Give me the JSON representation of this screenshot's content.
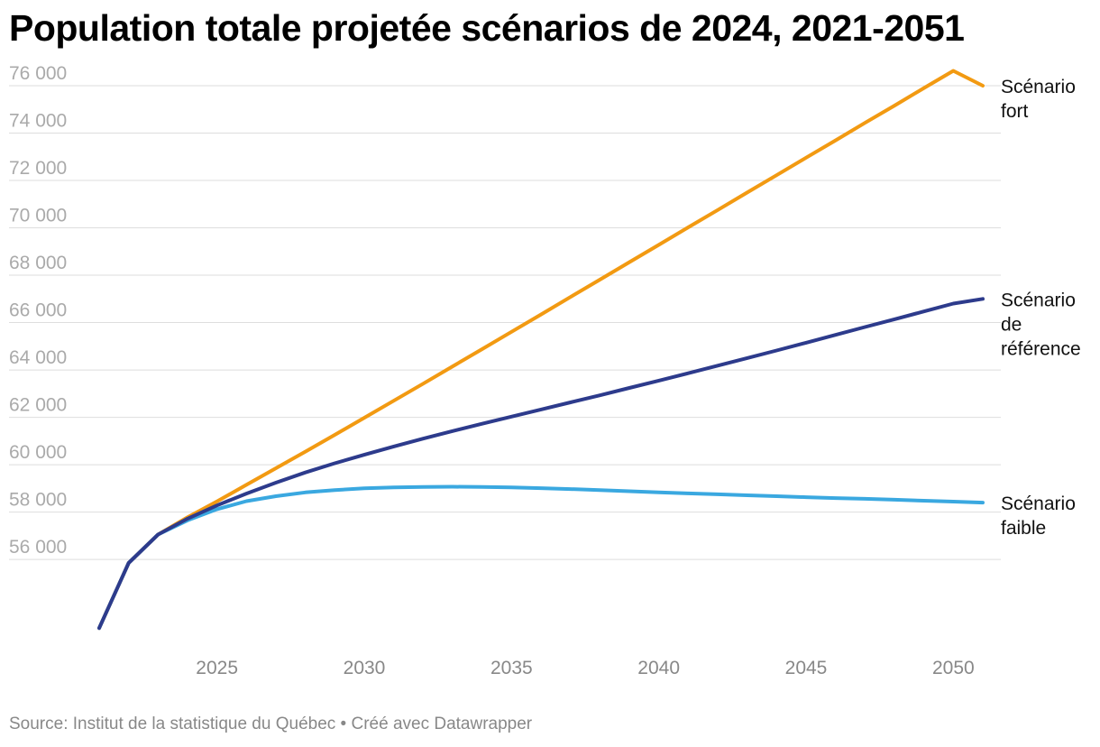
{
  "title": "Population totale projetée scénarios de 2024, 2021-2051",
  "source": "Source: Institut de la statistique du Québec • Créé avec Datawrapper",
  "chart_data": {
    "type": "line",
    "title": "Population totale projetée scénarios de 2024, 2021-2051",
    "xlabel": "",
    "ylabel": "",
    "xlim": [
      2021,
      2051
    ],
    "ylim": [
      52500,
      76000
    ],
    "x_ticks": [
      2025,
      2030,
      2035,
      2040,
      2045,
      2050
    ],
    "x_tick_labels": [
      "2025",
      "2030",
      "2035",
      "2040",
      "2045",
      "2050"
    ],
    "y_ticks": [
      56000,
      58000,
      60000,
      62000,
      64000,
      66000,
      68000,
      70000,
      72000,
      74000,
      76000
    ],
    "y_tick_labels": [
      "56 000",
      "58 000",
      "60 000",
      "62 000",
      "64 000",
      "66 000",
      "68 000",
      "70 000",
      "72 000",
      "74 000",
      "76 000"
    ],
    "grid": "horizontal",
    "legend": "direct labels at line ends (right)",
    "series": [
      {
        "name": "Scénario fort",
        "label_lines": [
          "Scénario",
          "fort"
        ],
        "color": "#f29a12",
        "x": [
          2021,
          2022,
          2023,
          2024,
          2025,
          2026,
          2027,
          2028,
          2029,
          2030,
          2031,
          2032,
          2033,
          2034,
          2035,
          2036,
          2037,
          2038,
          2039,
          2040,
          2041,
          2042,
          2043,
          2044,
          2045,
          2046,
          2047,
          2048,
          2049,
          2050,
          2051
        ],
        "values": [
          53100,
          55850,
          57050,
          57780,
          58450,
          59150,
          59850,
          60550,
          61260,
          61980,
          62700,
          63420,
          64150,
          64880,
          65610,
          66340,
          67080,
          67810,
          68550,
          69280,
          70020,
          70750,
          71490,
          72220,
          72960,
          73690,
          74430,
          75160,
          75900,
          76630,
          76000
        ]
      },
      {
        "name": "Scénario de référence",
        "label_lines": [
          "Scénario",
          "de",
          "référence"
        ],
        "color": "#2d3b8c",
        "x": [
          2021,
          2022,
          2023,
          2024,
          2025,
          2026,
          2027,
          2028,
          2029,
          2030,
          2031,
          2032,
          2033,
          2034,
          2035,
          2036,
          2037,
          2038,
          2039,
          2040,
          2041,
          2042,
          2043,
          2044,
          2045,
          2046,
          2047,
          2048,
          2049,
          2050,
          2051
        ],
        "values": [
          53100,
          55850,
          57050,
          57720,
          58280,
          58780,
          59240,
          59670,
          60060,
          60420,
          60770,
          61100,
          61420,
          61730,
          62030,
          62330,
          62630,
          62930,
          63240,
          63550,
          63860,
          64180,
          64500,
          64820,
          65150,
          65480,
          65810,
          66140,
          66470,
          66800,
          67000
        ]
      },
      {
        "name": "Scénario faible",
        "label_lines": [
          "Scénario",
          "faible"
        ],
        "color": "#3aa8e0",
        "x": [
          2021,
          2022,
          2023,
          2024,
          2025,
          2026,
          2027,
          2028,
          2029,
          2030,
          2031,
          2032,
          2033,
          2034,
          2035,
          2036,
          2037,
          2038,
          2039,
          2040,
          2041,
          2042,
          2043,
          2044,
          2045,
          2046,
          2047,
          2048,
          2049,
          2050,
          2051
        ],
        "values": [
          53100,
          55850,
          57050,
          57650,
          58120,
          58460,
          58670,
          58830,
          58930,
          59000,
          59040,
          59060,
          59070,
          59060,
          59040,
          59010,
          58970,
          58930,
          58880,
          58830,
          58790,
          58750,
          58710,
          58670,
          58630,
          58590,
          58560,
          58520,
          58480,
          58440,
          58400
        ]
      }
    ]
  }
}
